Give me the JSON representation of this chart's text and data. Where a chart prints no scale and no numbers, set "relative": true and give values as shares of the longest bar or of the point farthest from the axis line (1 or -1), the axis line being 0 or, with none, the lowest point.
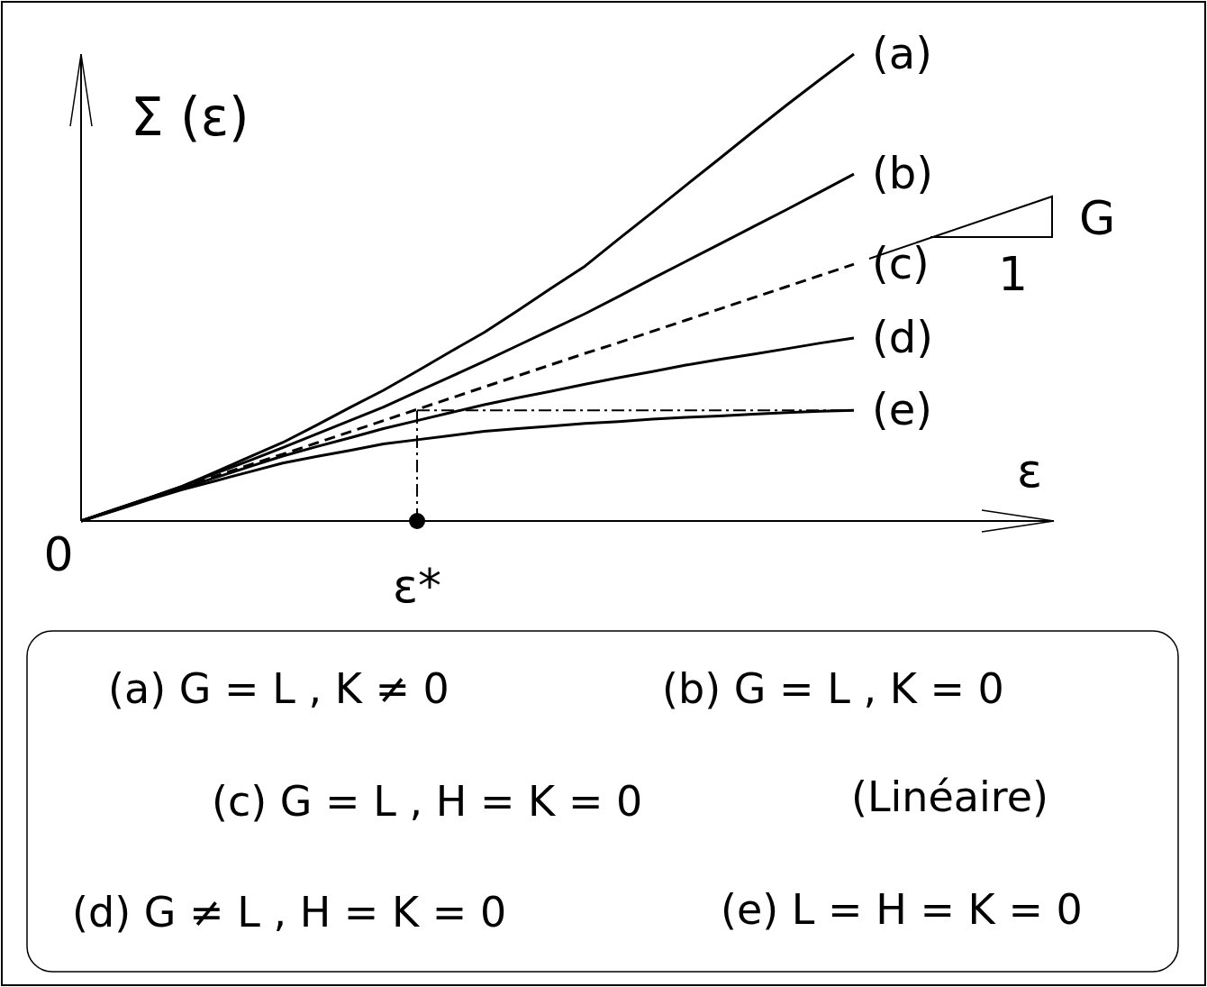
{
  "chart_data": {
    "type": "line",
    "relative": true,
    "xlabel": "ε",
    "ylabel": "Σ (ε)",
    "legend": false,
    "categories": [
      null,
      null,
      null,
      null,
      null,
      null,
      null,
      null,
      null,
      null,
      null,
      null,
      null,
      null,
      null,
      null,
      null,
      null,
      null,
      null,
      null,
      null,
      null,
      null
    ],
    "series": [
      {
        "name": "(a)",
        "color": "#000000",
        "values": [
          0,
          0.025,
          0.049,
          0.074,
          0.105,
          0.137,
          0.168,
          0.205,
          0.243,
          0.28,
          0.321,
          0.363,
          0.404,
          0.451,
          0.499,
          0.546,
          0.604,
          0.661,
          0.719,
          0.776,
          0.834,
          0.891,
          0.946,
          1
        ]
      },
      {
        "name": "(b)",
        "color": "#000000",
        "values": [
          0,
          0.025,
          0.049,
          0.074,
          0.102,
          0.129,
          0.157,
          0.186,
          0.215,
          0.244,
          0.277,
          0.309,
          0.342,
          0.376,
          0.41,
          0.444,
          0.481,
          0.519,
          0.556,
          0.593,
          0.63,
          0.667,
          0.705,
          0.743
        ]
      },
      {
        "name": "(c)",
        "color": "#000000",
        "line_style": "dashed",
        "values": [
          0,
          0.024,
          0.048,
          0.072,
          0.096,
          0.12,
          0.143,
          0.167,
          0.191,
          0.215,
          0.239,
          0.263,
          0.287,
          0.311,
          0.335,
          0.359,
          0.382,
          0.406,
          0.43,
          0.454,
          0.478,
          0.502,
          0.526,
          0.55
        ]
      },
      {
        "name": "(d)",
        "color": "#000000",
        "values": [
          0,
          0.023,
          0.047,
          0.07,
          0.093,
          0.116,
          0.139,
          0.159,
          0.178,
          0.198,
          0.215,
          0.232,
          0.249,
          0.264,
          0.278,
          0.293,
          0.307,
          0.32,
          0.334,
          0.346,
          0.357,
          0.369,
          0.381,
          0.392
        ]
      },
      {
        "name": "(e)",
        "color": "#000000",
        "values": [
          0,
          0.022,
          0.045,
          0.067,
          0.086,
          0.105,
          0.124,
          0.138,
          0.151,
          0.165,
          0.174,
          0.183,
          0.192,
          0.198,
          0.203,
          0.209,
          0.213,
          0.218,
          0.222,
          0.225,
          0.229,
          0.232,
          0.235,
          0.237
        ]
      },
      {
        "color": "#000000",
        "line_style": "dotted",
        "values": [
          null,
          null,
          null,
          null,
          null,
          null,
          null,
          null,
          null,
          null,
          0.237,
          0.237,
          0.237,
          0.237,
          0.237,
          0.237,
          0.237,
          0.237,
          0.237,
          0.237,
          0.237,
          0.237,
          0.237,
          0.237
        ]
      }
    ],
    "annotations": [
      "0",
      "ε*",
      "G",
      "1",
      "(a) G = L , K ≠ 0",
      "(b) G = L , K = 0",
      "(c) G = L , H = K = 0",
      "(Linéaire)",
      "(d) G ≠ L , H = K = 0",
      "(e) L = H = K = 0"
    ]
  }
}
